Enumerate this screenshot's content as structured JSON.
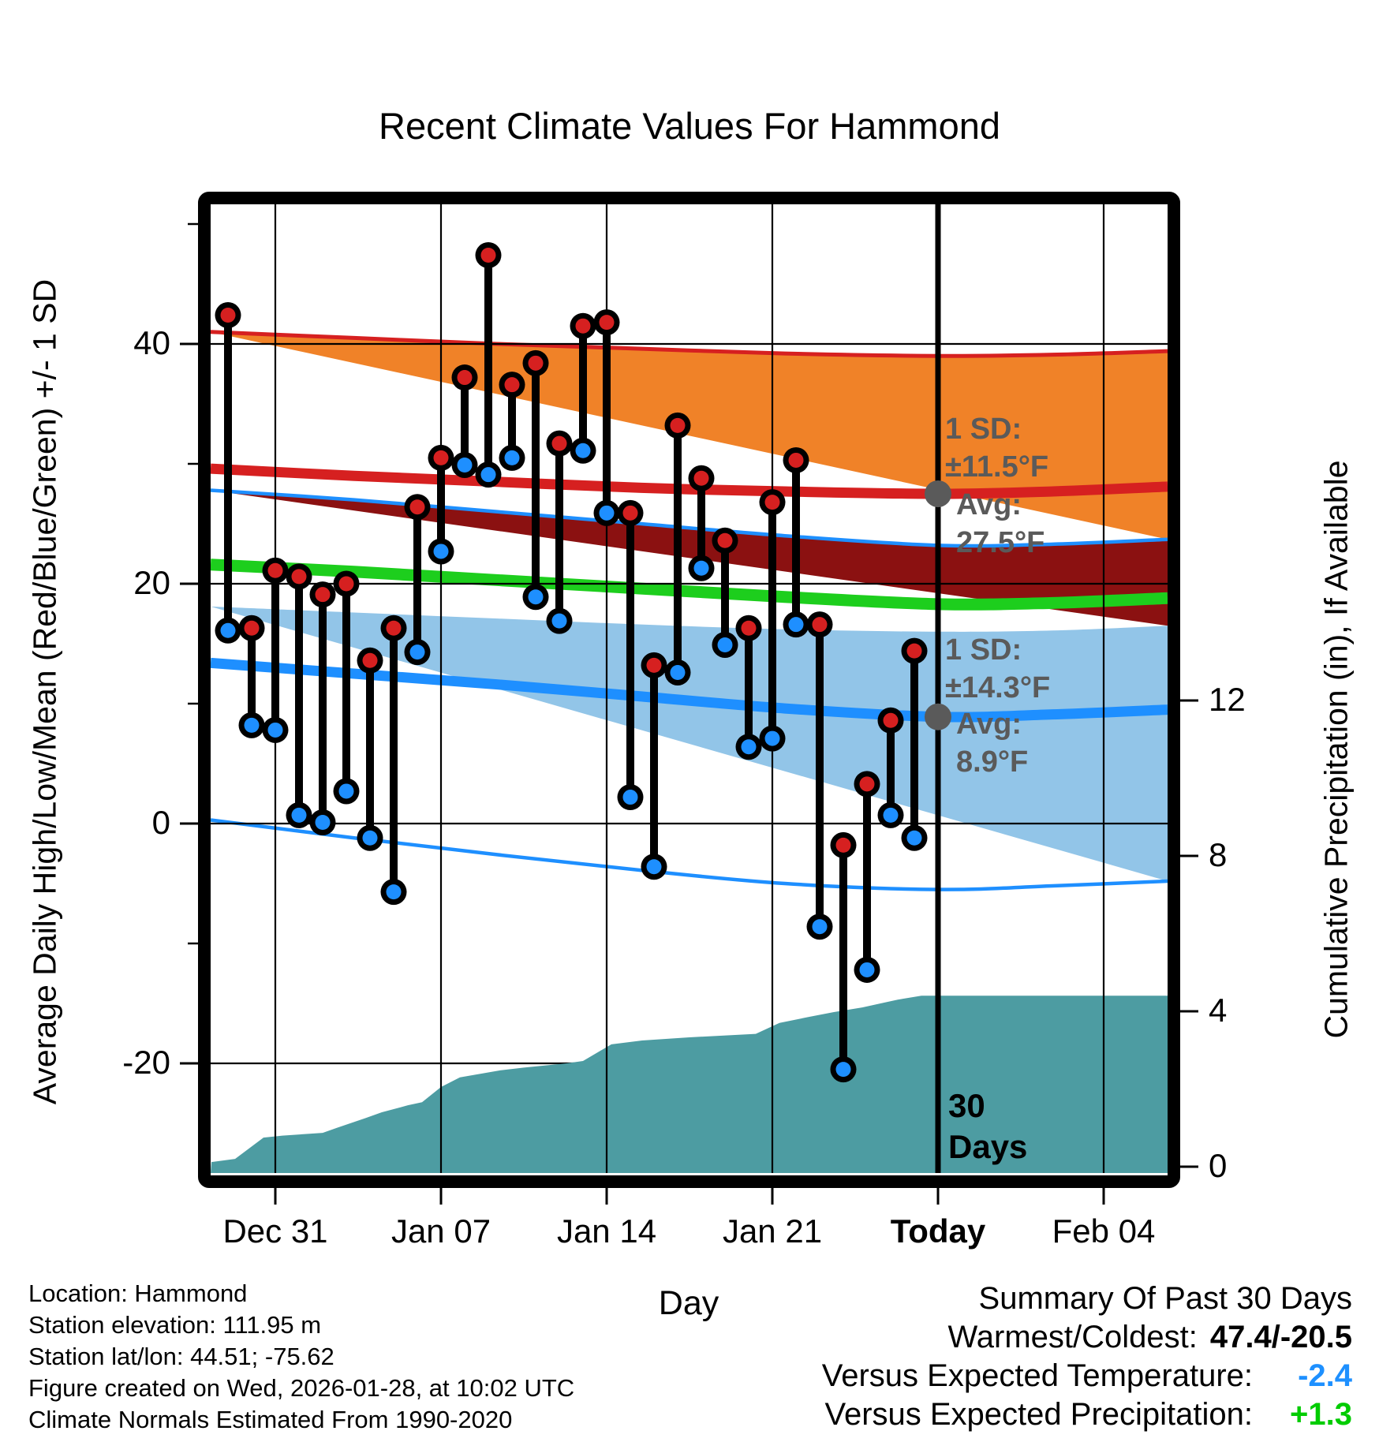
{
  "title": "Recent Climate Values For Hammond",
  "axes": {
    "x_label": "Day",
    "left_label": "Average Daily High/Low/Mean (Red/Blue/Green) +/- 1 SD",
    "right_label": "Cumulative Precipitation (in), If Available",
    "x_ticks": [
      {
        "label": "Dec 31",
        "day": 2,
        "bold": false
      },
      {
        "label": "Jan 07",
        "day": 9,
        "bold": false
      },
      {
        "label": "Jan 14",
        "day": 16,
        "bold": false
      },
      {
        "label": "Jan 21",
        "day": 23,
        "bold": false
      },
      {
        "label": "Today",
        "day": 30,
        "bold": true
      },
      {
        "label": "Feb 04",
        "day": 37,
        "bold": false
      }
    ],
    "left_ticks": [
      {
        "label": "40",
        "value": 40
      },
      {
        "label": "20",
        "value": 20
      },
      {
        "label": "0",
        "value": 0
      },
      {
        "label": "-20",
        "value": -20
      }
    ],
    "left_minor_ticks": [
      50,
      30,
      10,
      -10
    ],
    "right_ticks": [
      {
        "label": "12",
        "value": 12
      },
      {
        "label": "8",
        "value": 8
      },
      {
        "label": "4",
        "value": 4
      },
      {
        "label": "0",
        "value": 0
      }
    ]
  },
  "chart_data": {
    "type": "combo",
    "title": "Recent Climate Values For Hammond",
    "xlabel": "Day",
    "ylabel_left": "Average Daily High/Low/Mean (Red/Blue/Green) +/- 1 SD",
    "ylabel_right": "Cumulative Precipitation (in), If Available",
    "temp_ylim": [
      -28,
      51
    ],
    "precip_ylim": [
      0,
      14
    ],
    "grid": true,
    "daily": {
      "dates": [
        "Dec 29",
        "Dec 30",
        "Dec 31",
        "Jan 01",
        "Jan 02",
        "Jan 03",
        "Jan 04",
        "Jan 05",
        "Jan 06",
        "Jan 07",
        "Jan 08",
        "Jan 09",
        "Jan 10",
        "Jan 11",
        "Jan 12",
        "Jan 13",
        "Jan 14",
        "Jan 15",
        "Jan 16",
        "Jan 17",
        "Jan 18",
        "Jan 19",
        "Jan 20",
        "Jan 21",
        "Jan 22",
        "Jan 23",
        "Jan 24",
        "Jan 25",
        "Jan 26",
        "Jan 27"
      ],
      "high": [
        42.4,
        16.3,
        21.1,
        20.6,
        19.1,
        20.0,
        13.6,
        16.3,
        26.4,
        30.5,
        37.2,
        47.4,
        36.6,
        38.4,
        31.7,
        41.5,
        41.8,
        25.9,
        13.2,
        33.2,
        28.8,
        23.6,
        16.3,
        26.8,
        30.3,
        16.6,
        -1.8,
        3.3,
        8.6,
        14.4
      ],
      "low": [
        16.1,
        8.2,
        7.8,
        0.7,
        0.1,
        2.7,
        -1.2,
        -5.7,
        14.3,
        22.7,
        29.9,
        29.1,
        30.5,
        18.9,
        16.9,
        31.1,
        25.9,
        2.2,
        -3.6,
        12.6,
        21.3,
        14.9,
        6.4,
        7.1,
        16.6,
        -8.6,
        -20.5,
        -12.2,
        0.7,
        -1.2
      ]
    },
    "normals": {
      "today_avg_high_f": 27.5,
      "today_sd_high_f": 11.5,
      "today_avg_low_f": 8.9,
      "today_sd_low_f": 14.3,
      "high_plus_sd": [
        [
          0,
          41.0
        ],
        [
          0.15,
          40.5
        ],
        [
          0.3,
          40.0
        ],
        [
          0.45,
          39.6
        ],
        [
          0.6,
          39.2
        ],
        [
          0.76,
          39.0
        ],
        [
          0.88,
          39.1
        ],
        [
          1,
          39.4
        ]
      ],
      "avg_high": [
        [
          0,
          29.6
        ],
        [
          0.15,
          29.0
        ],
        [
          0.3,
          28.5
        ],
        [
          0.45,
          28.0
        ],
        [
          0.6,
          27.7
        ],
        [
          0.76,
          27.5
        ],
        [
          0.88,
          27.7
        ],
        [
          1,
          28.1
        ]
      ],
      "low_plus_sd": [
        [
          0,
          27.8
        ],
        [
          0.15,
          27.0
        ],
        [
          0.3,
          26.0
        ],
        [
          0.45,
          25.0
        ],
        [
          0.6,
          24.0
        ],
        [
          0.76,
          23.2
        ],
        [
          0.88,
          23.3
        ],
        [
          1,
          23.7
        ]
      ],
      "mean": [
        [
          0,
          21.6
        ],
        [
          0.15,
          21.0
        ],
        [
          0.3,
          20.3
        ],
        [
          0.45,
          19.6
        ],
        [
          0.6,
          18.9
        ],
        [
          0.76,
          18.3
        ],
        [
          0.88,
          18.4
        ],
        [
          1,
          18.8
        ]
      ],
      "high_minus_sd": [
        [
          0,
          18.1
        ],
        [
          0.15,
          17.6
        ],
        [
          0.3,
          17.1
        ],
        [
          0.45,
          16.6
        ],
        [
          0.6,
          16.2
        ],
        [
          0.76,
          16.0
        ],
        [
          0.88,
          16.1
        ],
        [
          1,
          16.5
        ]
      ],
      "avg_low": [
        [
          0,
          13.4
        ],
        [
          0.15,
          12.5
        ],
        [
          0.3,
          11.6
        ],
        [
          0.45,
          10.6
        ],
        [
          0.6,
          9.6
        ],
        [
          0.76,
          8.9
        ],
        [
          0.88,
          9.1
        ],
        [
          1,
          9.5
        ]
      ],
      "low_minus_sd": [
        [
          0,
          0.3
        ],
        [
          0.15,
          -1.2
        ],
        [
          0.3,
          -2.6
        ],
        [
          0.45,
          -3.9
        ],
        [
          0.6,
          -5.0
        ],
        [
          0.76,
          -5.5
        ],
        [
          0.88,
          -5.2
        ],
        [
          1,
          -4.8
        ]
      ]
    },
    "precip_cumulative_in": [
      [
        -0.7,
        0.12
      ],
      [
        0.3,
        0.2
      ],
      [
        1.5,
        0.75
      ],
      [
        2.3,
        0.8
      ],
      [
        4.0,
        0.87
      ],
      [
        4.6,
        1.0
      ],
      [
        5.8,
        1.25
      ],
      [
        6.5,
        1.4
      ],
      [
        7.6,
        1.58
      ],
      [
        8.2,
        1.66
      ],
      [
        9.0,
        2.05
      ],
      [
        9.8,
        2.3
      ],
      [
        11.5,
        2.48
      ],
      [
        12.5,
        2.55
      ],
      [
        14.3,
        2.66
      ],
      [
        15.0,
        2.72
      ],
      [
        16.2,
        3.15
      ],
      [
        17.5,
        3.25
      ],
      [
        19.5,
        3.33
      ],
      [
        22.3,
        3.42
      ],
      [
        23.3,
        3.7
      ],
      [
        24.5,
        3.85
      ],
      [
        25.6,
        3.98
      ],
      [
        26.8,
        4.1
      ],
      [
        28.3,
        4.3
      ],
      [
        29.3,
        4.4
      ],
      [
        39.7,
        4.4
      ]
    ],
    "colors": {
      "high_band": "#F08228",
      "overlap_band": "#8B1111",
      "low_band": "#92C5E8",
      "avg_high_line": "#D62020",
      "avg_low_line": "#1E8FFF",
      "mean_line": "#1DCE1D",
      "high_dot": "#D62020",
      "low_dot": "#1E8FFF",
      "precip_fill": "#4D9CA2",
      "annotation_gray": "#5A5A5A",
      "grid_line": "#000000"
    }
  },
  "annotations": {
    "high_sd_label": {
      "line1": "1 SD:",
      "line2": "±11.5°F"
    },
    "high_avg_label": {
      "line1": "Avg:",
      "line2": "27.5°F"
    },
    "low_sd_label": {
      "line1": "1 SD:",
      "line2": "±14.3°F"
    },
    "low_avg_label": {
      "line1": "Avg:",
      "line2": "8.9°F"
    },
    "days_marker": {
      "line1": "30",
      "line2": "Days"
    }
  },
  "footer": {
    "lines": [
      "Location: Hammond",
      "Station elevation: 111.95 m",
      "Station lat/lon: 44.51; -75.62",
      "Figure created on Wed, 2026-01-28, at 10:02 UTC",
      "Climate Normals Estimated From 1990-2020"
    ]
  },
  "summary": {
    "title": "Summary Of Past 30 Days",
    "rows": [
      {
        "label": "Warmest/Coldest:",
        "value": "47.4/-20.5",
        "color": "#000000"
      },
      {
        "label": "Versus Expected Temperature:",
        "value": "-2.4",
        "color": "#1E90FF"
      },
      {
        "label": "Versus Expected Precipitation:",
        "value": "+1.3",
        "color": "#00CC00"
      }
    ]
  }
}
